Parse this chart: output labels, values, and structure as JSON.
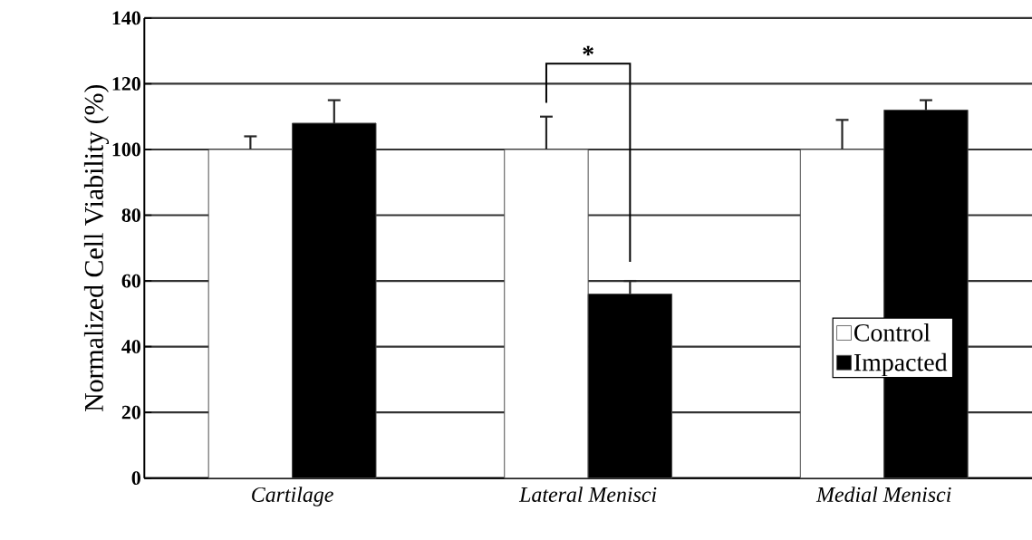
{
  "chart_data": {
    "type": "bar",
    "ylabel": "Normalized Cell Viability (%)",
    "categories": [
      "Cartilage",
      "Lateral Menisci",
      "Medial Menisci"
    ],
    "series": [
      {
        "name": "Control",
        "color": "#ffffff",
        "values": [
          100,
          100,
          100
        ],
        "errors": [
          [
            100,
            104
          ],
          [
            100,
            110
          ],
          [
            100,
            109
          ]
        ]
      },
      {
        "name": "Impacted",
        "color": "#000000",
        "values": [
          108,
          56,
          112
        ],
        "errors": [
          [
            108,
            115
          ],
          [
            56,
            60
          ],
          [
            112,
            115
          ]
        ]
      }
    ],
    "ylim": [
      0,
      140
    ],
    "yticks": [
      0,
      20,
      40,
      60,
      80,
      100,
      120,
      140
    ],
    "grid": "y",
    "legend": "bottom right",
    "annotations": [
      "*"
    ]
  }
}
